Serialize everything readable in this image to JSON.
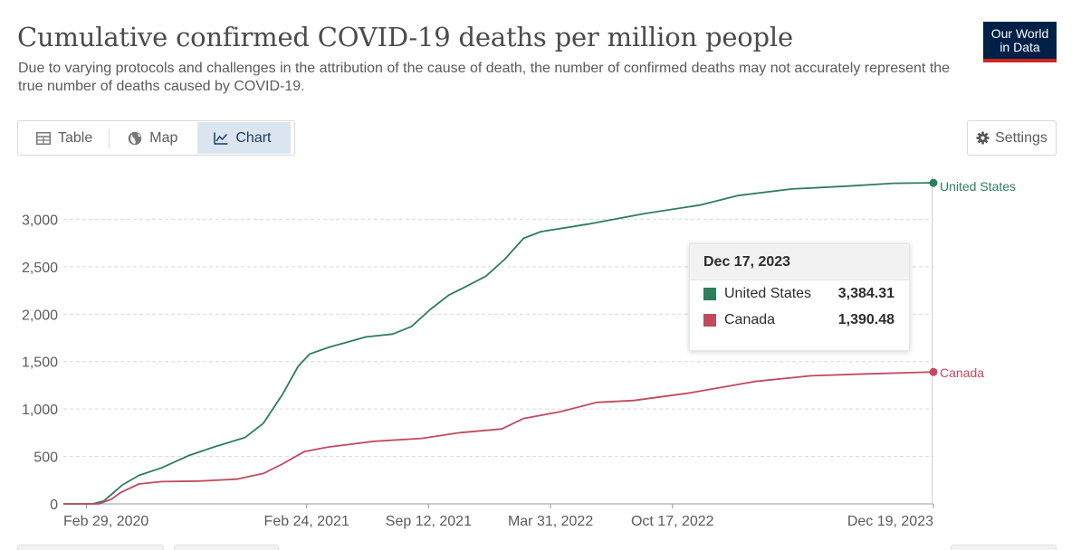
{
  "header": {
    "title": "Cumulative confirmed COVID-19 deaths per million people",
    "subtitle": "Due to varying protocols and challenges in the attribution of the cause of death, the number of confirmed deaths may not accurately represent the true number of deaths caused by COVID-19.",
    "logo_line1": "Our World",
    "logo_line2": "in Data"
  },
  "tabs": [
    {
      "label": "Table",
      "icon": "table-icon"
    },
    {
      "label": "Map",
      "icon": "globe-icon"
    },
    {
      "label": "Chart",
      "icon": "line-chart-icon",
      "active": true
    }
  ],
  "settings_label": "Settings",
  "colors": {
    "united_states": "#2e7d5b",
    "canada": "#c04a5f",
    "grid": "#d9d9d9",
    "axis_text": "#5b5b5b"
  },
  "tooltip": {
    "date": "Dec 17, 2023",
    "rows": [
      {
        "name": "United States",
        "value": "3,384.31"
      },
      {
        "name": "Canada",
        "value": "1,390.48"
      }
    ]
  },
  "chart_data": {
    "type": "line",
    "title": "Cumulative confirmed COVID-19 deaths per million people",
    "ylim": [
      0,
      3500
    ],
    "yticks": [
      0,
      500,
      1000,
      1500,
      2000,
      2500,
      3000
    ],
    "ytick_labels": [
      "0",
      "500",
      "1,000",
      "1,500",
      "2,000",
      "2,500",
      "3,000"
    ],
    "xlim": [
      "2020-01-22",
      "2023-12-19"
    ],
    "xticks": [
      {
        "date": "2020-02-29",
        "label": "Feb 29, 2020"
      },
      {
        "date": "2021-02-24",
        "label": "Feb 24, 2021"
      },
      {
        "date": "2021-09-12",
        "label": "Sep 12, 2021"
      },
      {
        "date": "2022-03-31",
        "label": "Mar 31, 2022"
      },
      {
        "date": "2022-10-17",
        "label": "Oct 17, 2022"
      },
      {
        "date": "2023-12-19",
        "label": "Dec 19, 2023"
      }
    ],
    "grid": true,
    "legend": "end-of-line labels",
    "series": [
      {
        "name": "United States",
        "points": [
          [
            "2020-01-22",
            0
          ],
          [
            "2020-03-10",
            0
          ],
          [
            "2020-03-28",
            30
          ],
          [
            "2020-04-10",
            100
          ],
          [
            "2020-04-28",
            200
          ],
          [
            "2020-05-25",
            300
          ],
          [
            "2020-07-01",
            380
          ],
          [
            "2020-08-15",
            510
          ],
          [
            "2020-09-25",
            600
          ],
          [
            "2020-11-15",
            700
          ],
          [
            "2020-12-15",
            850
          ],
          [
            "2021-01-15",
            1150
          ],
          [
            "2021-02-10",
            1450
          ],
          [
            "2021-03-01",
            1580
          ],
          [
            "2021-04-01",
            1650
          ],
          [
            "2021-06-01",
            1760
          ],
          [
            "2021-07-15",
            1790
          ],
          [
            "2021-08-15",
            1870
          ],
          [
            "2021-09-15",
            2050
          ],
          [
            "2021-10-15",
            2200
          ],
          [
            "2021-11-15",
            2300
          ],
          [
            "2021-12-15",
            2400
          ],
          [
            "2022-01-15",
            2580
          ],
          [
            "2022-02-15",
            2800
          ],
          [
            "2022-03-15",
            2870
          ],
          [
            "2022-06-01",
            2950
          ],
          [
            "2022-09-01",
            3060
          ],
          [
            "2022-12-01",
            3150
          ],
          [
            "2023-02-01",
            3250
          ],
          [
            "2023-05-01",
            3320
          ],
          [
            "2023-08-01",
            3350
          ],
          [
            "2023-10-15",
            3380
          ],
          [
            "2023-12-19",
            3384.31
          ]
        ]
      },
      {
        "name": "Canada",
        "points": [
          [
            "2020-01-22",
            0
          ],
          [
            "2020-03-20",
            0
          ],
          [
            "2020-04-10",
            50
          ],
          [
            "2020-04-25",
            120
          ],
          [
            "2020-05-25",
            210
          ],
          [
            "2020-07-01",
            235
          ],
          [
            "2020-09-01",
            240
          ],
          [
            "2020-11-01",
            260
          ],
          [
            "2020-12-15",
            320
          ],
          [
            "2021-01-15",
            420
          ],
          [
            "2021-02-20",
            550
          ],
          [
            "2021-04-01",
            600
          ],
          [
            "2021-06-15",
            660
          ],
          [
            "2021-09-01",
            690
          ],
          [
            "2021-11-01",
            750
          ],
          [
            "2022-01-10",
            790
          ],
          [
            "2022-02-15",
            900
          ],
          [
            "2022-04-15",
            970
          ],
          [
            "2022-06-15",
            1070
          ],
          [
            "2022-08-15",
            1090
          ],
          [
            "2022-11-15",
            1170
          ],
          [
            "2023-03-01",
            1290
          ],
          [
            "2023-06-01",
            1350
          ],
          [
            "2023-09-01",
            1370
          ],
          [
            "2023-12-19",
            1390.48
          ]
        ]
      }
    ],
    "annotations": [
      "United States",
      "Canada"
    ],
    "hover_date": "2023-12-17"
  }
}
